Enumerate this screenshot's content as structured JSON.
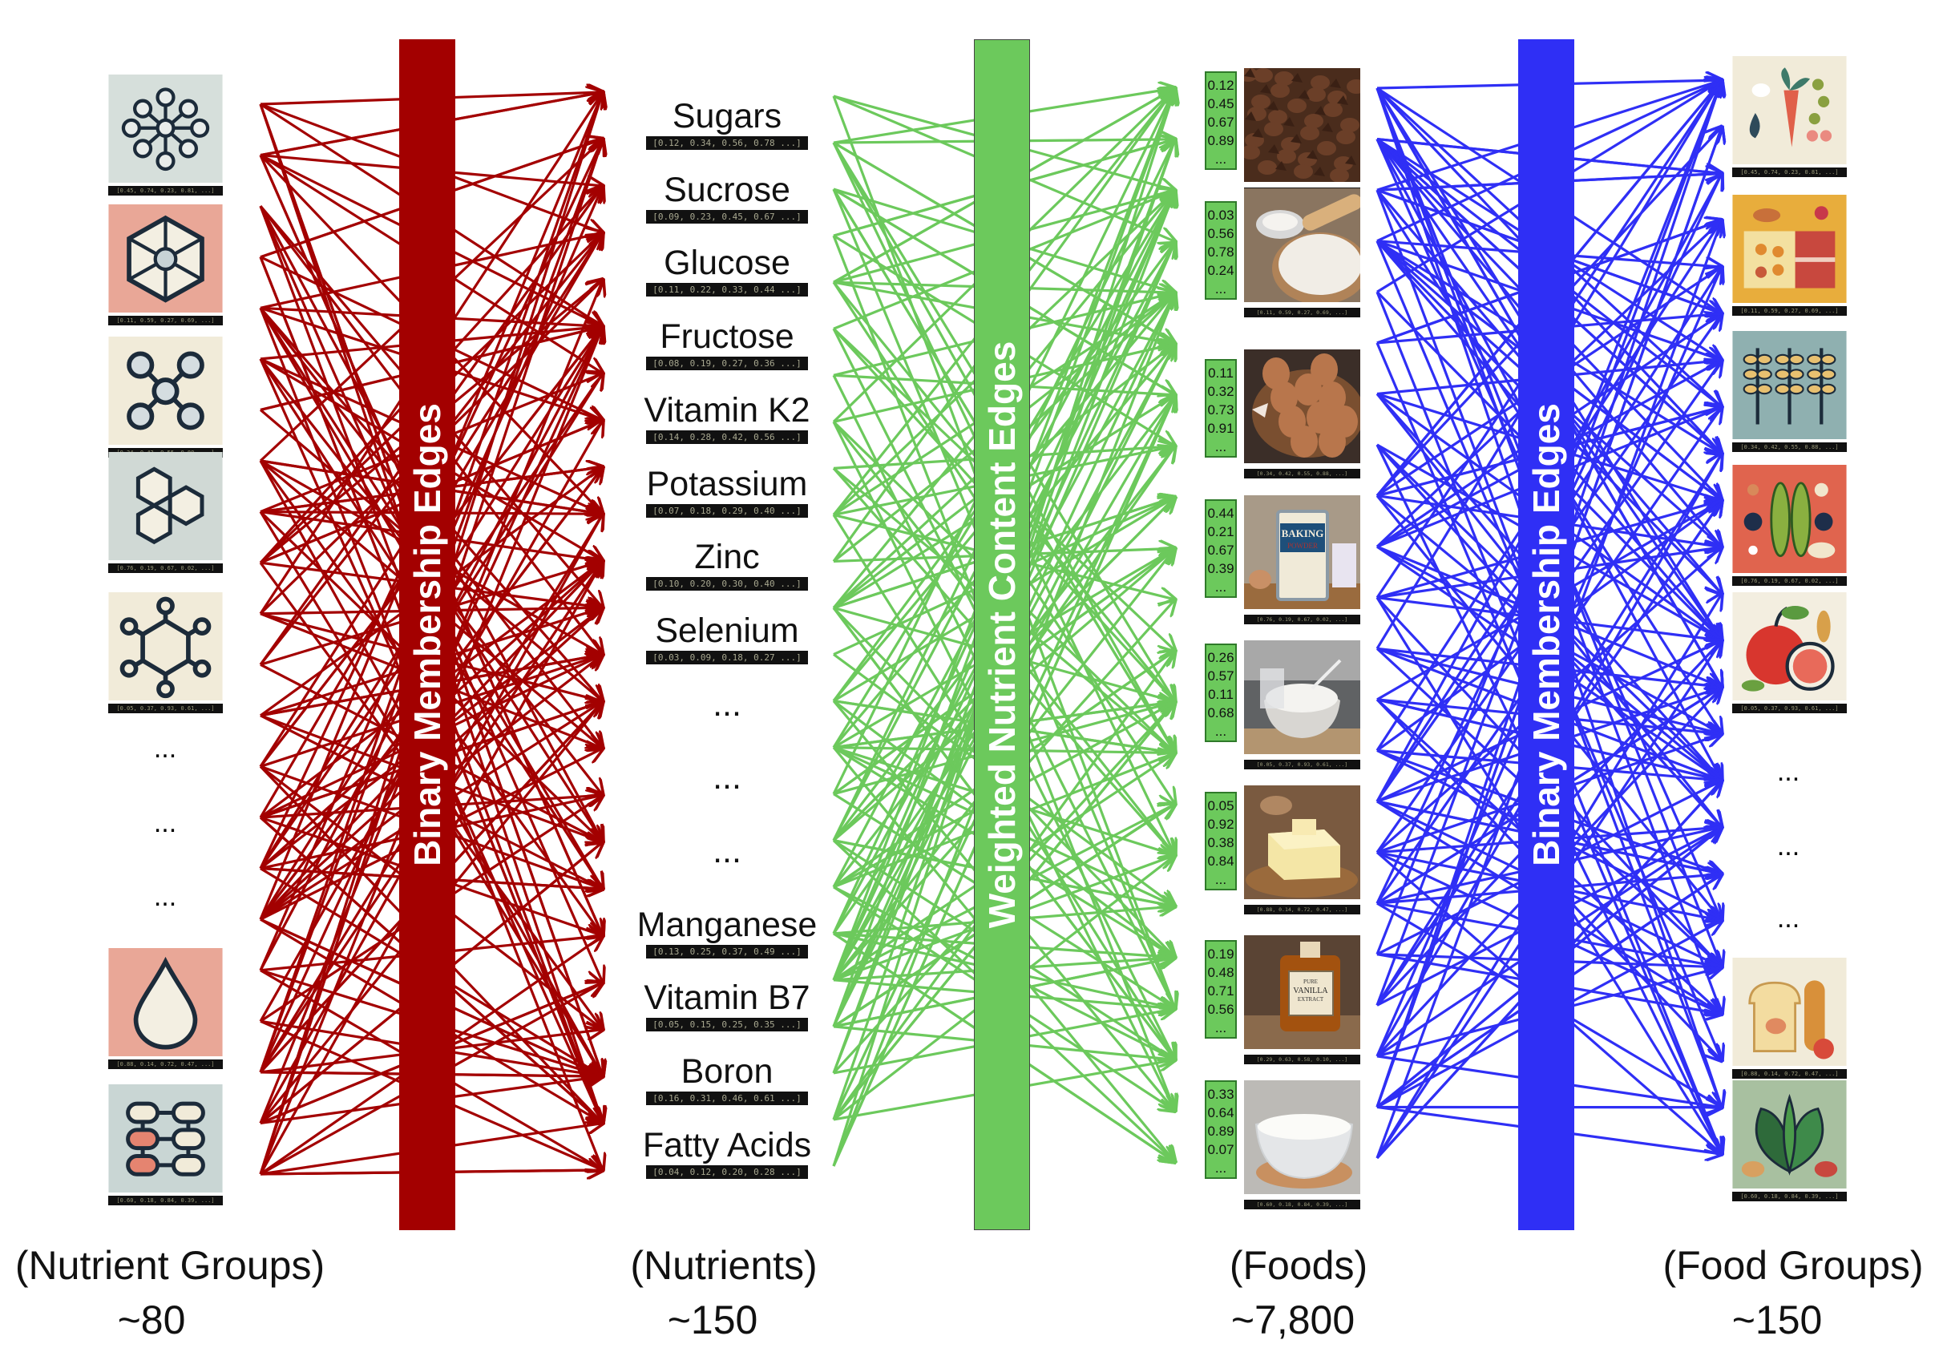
{
  "colors": {
    "red_edges": "#a30000",
    "green_edges": "#6cc95c",
    "blue_edges": "#2f2ff5",
    "bar_text": "#ffffff"
  },
  "edge_bars": {
    "left": "Binary Membership Edges",
    "middle": "Weighted Nutrient Content Edges",
    "right": "Binary Membership Edges"
  },
  "nutrient_groups": {
    "label": "(Nutrient Groups)",
    "count": "~80",
    "ellipsis": "...",
    "items": [
      {
        "icon": "molecule-lattice-icon",
        "vector": "[0.45, 0.74, 0.23, 0.81, ...]"
      },
      {
        "icon": "hexagon-cube-icon",
        "vector": "[0.11, 0.59, 0.27, 0.69, ...]"
      },
      {
        "icon": "x-molecule-icon",
        "vector": "[0.34, 0.42, 0.55, 0.88, ...]"
      },
      {
        "icon": "hexagon-cluster-icon",
        "vector": "[0.76, 0.19, 0.67, 0.02, ...]"
      },
      {
        "icon": "benzene-ring-icon",
        "vector": "[0.05, 0.37, 0.93, 0.61, ...]"
      },
      {
        "icon": "droplet-icon",
        "vector": "[0.88, 0.14, 0.72, 0.47, ...]"
      },
      {
        "icon": "pill-grid-icon",
        "vector": "[0.60, 0.18, 0.84, 0.39, ...]"
      }
    ]
  },
  "nutrients": {
    "label": "(Nutrients)",
    "count": "~150",
    "items": [
      {
        "name": "Sugars",
        "vector": "[0.12, 0.34, 0.56, 0.78 ...]"
      },
      {
        "name": "Sucrose",
        "vector": "[0.09, 0.23, 0.45, 0.67 ...]"
      },
      {
        "name": "Glucose",
        "vector": "[0.11, 0.22, 0.33, 0.44 ...]"
      },
      {
        "name": "Fructose",
        "vector": "[0.08, 0.19, 0.27, 0.36 ...]"
      },
      {
        "name": "Vitamin K2",
        "vector": "[0.14, 0.28, 0.42, 0.56 ...]"
      },
      {
        "name": "Potassium",
        "vector": "[0.07, 0.18, 0.29, 0.40 ...]"
      },
      {
        "name": "Zinc",
        "vector": "[0.10, 0.20, 0.30, 0.40 ...]"
      },
      {
        "name": "Selenium",
        "vector": "[0.03, 0.09, 0.18, 0.27 ...]"
      },
      {
        "name": "...",
        "vector": null
      },
      {
        "name": "...",
        "vector": null
      },
      {
        "name": "...",
        "vector": null
      },
      {
        "name": "Manganese",
        "vector": "[0.13, 0.25, 0.37, 0.49 ...]"
      },
      {
        "name": "Vitamin B7",
        "vector": "[0.05, 0.15, 0.25, 0.35 ...]"
      },
      {
        "name": "Boron",
        "vector": "[0.16, 0.31, 0.46, 0.61 ...]"
      },
      {
        "name": "Fatty Acids",
        "vector": "[0.04, 0.12, 0.20, 0.28 ...]"
      }
    ]
  },
  "foods": {
    "label": "(Foods)",
    "count": "~7,800",
    "items": [
      {
        "image": "chocolate-chips-photo",
        "weights": [
          "0.12",
          "0.45",
          "0.67",
          "0.89",
          "..."
        ],
        "vector": "[0.45, 0.74, 0.23, 0.81, ...]"
      },
      {
        "image": "flour-photo",
        "weights": [
          "0.03",
          "0.56",
          "0.78",
          "0.24",
          "..."
        ],
        "vector": "[0.11, 0.59, 0.27, 0.69, ...]"
      },
      {
        "image": "eggs-photo",
        "weights": [
          "0.11",
          "0.32",
          "0.73",
          "0.91",
          "..."
        ],
        "vector": "[0.34, 0.42, 0.55, 0.88, ...]"
      },
      {
        "image": "baking-powder-photo",
        "weights": [
          "0.44",
          "0.21",
          "0.67",
          "0.39",
          "..."
        ],
        "vector": "[0.76, 0.19, 0.67, 0.02, ...]"
      },
      {
        "image": "sugar-bowl-photo",
        "weights": [
          "0.26",
          "0.57",
          "0.11",
          "0.68",
          "..."
        ],
        "vector": "[0.05, 0.37, 0.93, 0.61, ...]"
      },
      {
        "image": "butter-photo",
        "weights": [
          "0.05",
          "0.92",
          "0.38",
          "0.84",
          "..."
        ],
        "vector": "[0.88, 0.14, 0.72, 0.47, ...]"
      },
      {
        "image": "vanilla-extract-photo",
        "weights": [
          "0.19",
          "0.48",
          "0.71",
          "0.56",
          "..."
        ],
        "vector": "[0.29, 0.63, 0.58, 0.10, ...]",
        "label_text": [
          "PURE",
          "VANILLA",
          "EXTRACT"
        ]
      },
      {
        "image": "milk-bowl-photo",
        "weights": [
          "0.33",
          "0.64",
          "0.89",
          "0.07",
          "..."
        ],
        "vector": "[0.60, 0.18, 0.84, 0.39, ...]"
      }
    ],
    "can_text": [
      "BAKING",
      "POWDER"
    ]
  },
  "food_groups": {
    "label": "(Food Groups)",
    "count": "~150",
    "ellipsis": "...",
    "items": [
      {
        "icon": "vegetables-icon",
        "vector": "[0.45, 0.74, 0.23, 0.81, ...]"
      },
      {
        "icon": "dairy-meat-icon",
        "vector": "[0.11, 0.59, 0.27, 0.69, ...]"
      },
      {
        "icon": "grains-icon",
        "vector": "[0.34, 0.42, 0.55, 0.88, ...]"
      },
      {
        "icon": "legumes-icon",
        "vector": "[0.76, 0.19, 0.67, 0.02, ...]"
      },
      {
        "icon": "fruits-icon",
        "vector": "[0.05, 0.37, 0.93, 0.61, ...]"
      },
      {
        "icon": "bread-icon",
        "vector": "[0.88, 0.14, 0.72, 0.47, ...]"
      },
      {
        "icon": "leafy-greens-icon",
        "vector": "[0.60, 0.18, 0.84, 0.39, ...]"
      }
    ]
  }
}
